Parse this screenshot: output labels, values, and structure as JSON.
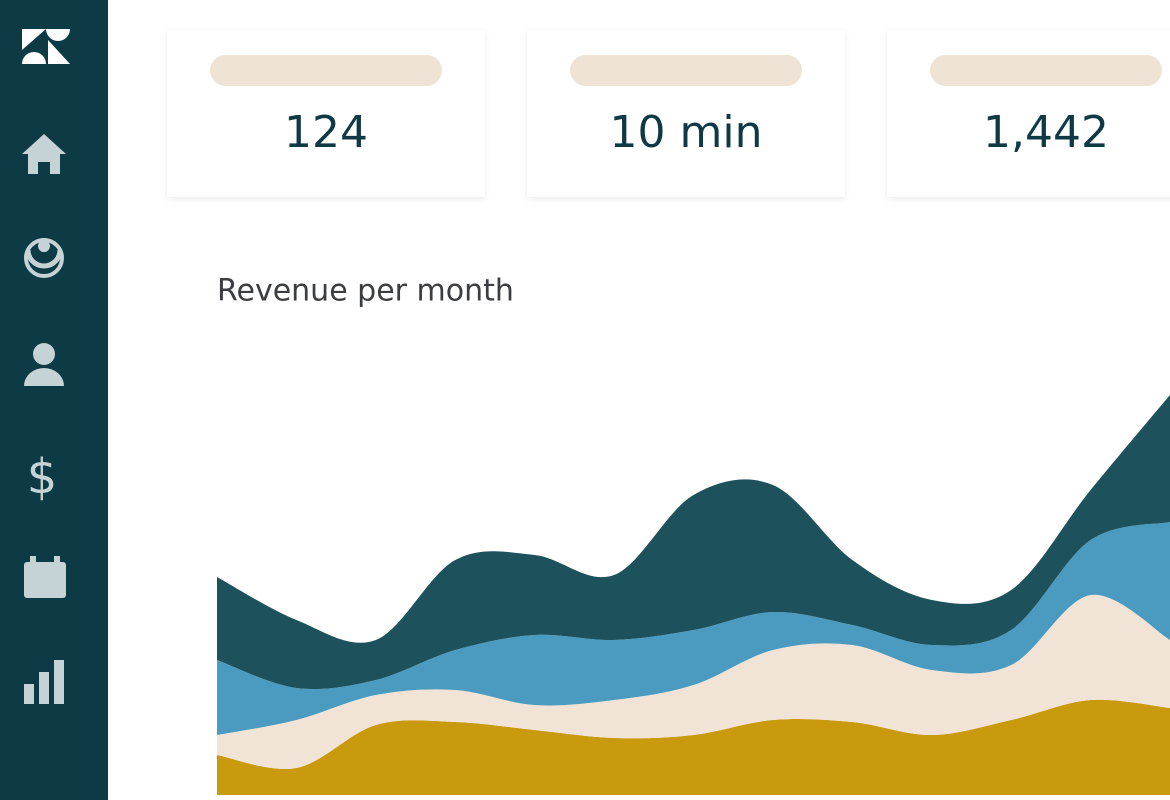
{
  "kpis": [
    {
      "value": "124"
    },
    {
      "value": "10 min"
    },
    {
      "value": "1,442"
    }
  ],
  "chart_data": {
    "type": "stacked-area",
    "title": "Revenue per month",
    "categories": [
      null,
      null,
      null,
      null,
      null,
      null,
      null,
      null,
      null,
      null,
      null,
      null,
      null
    ],
    "ylim": [
      0,
      400
    ],
    "series": [
      {
        "color": "#c99a0e",
        "values": [
          40,
          27,
          70,
          73,
          65,
          57,
          60,
          75,
          73,
          60,
          75,
          95,
          87
        ]
      },
      {
        "color": "#f1e4d6",
        "values": [
          20,
          48,
          30,
          32,
          25,
          38,
          50,
          70,
          77,
          65,
          55,
          105,
          68
        ]
      },
      {
        "color": "#4a9bbf",
        "values": [
          75,
          32,
          15,
          40,
          70,
          60,
          55,
          38,
          20,
          25,
          35,
          55,
          118
        ]
      },
      {
        "color": "#1d525c",
        "values": [
          83,
          68,
          40,
          90,
          80,
          65,
          135,
          127,
          65,
          45,
          40,
          50,
          127
        ]
      }
    ]
  }
}
